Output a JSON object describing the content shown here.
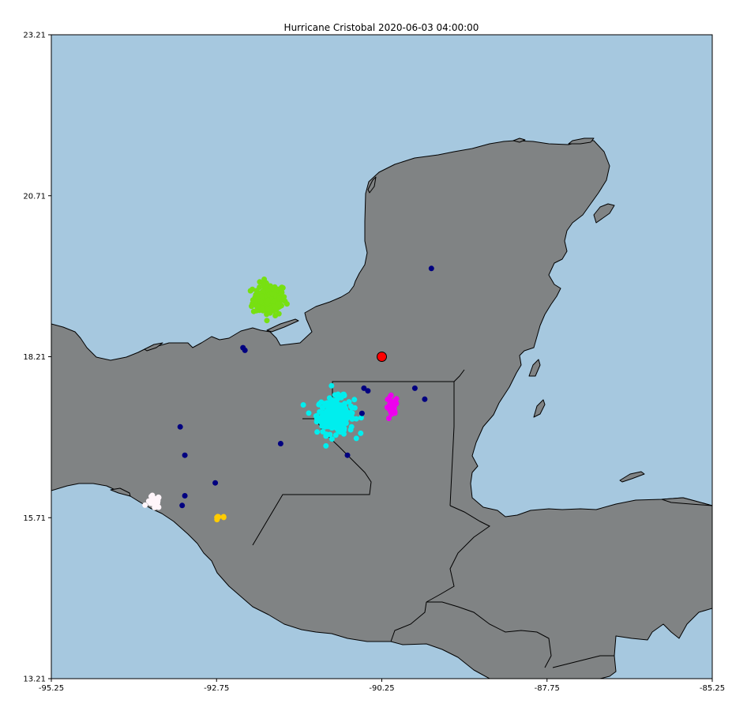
{
  "title": "Hurricane Cristobal 2020-06-03 04:00:00",
  "colors": {
    "ocean": "#a6c8df",
    "land": "#808384",
    "coast": "#000000",
    "storm_center": "#ff0000",
    "cluster_green": "#77e011",
    "cluster_cyan": "#00eeee",
    "cluster_magenta": "#ee00ee",
    "cluster_white": "#fff5fa",
    "cluster_yellow": "#ffcc00",
    "noise_navy": "#000080"
  },
  "chart_data": {
    "type": "scatter",
    "title": "Hurricane Cristobal 2020-06-03 04:00:00",
    "xlabel": "",
    "ylabel": "",
    "xlim": [
      -95.25,
      -85.25
    ],
    "ylim": [
      13.21,
      23.21
    ],
    "x_ticks": [
      "-95.25",
      "-92.75",
      "-90.25",
      "-87.75",
      "-85.25"
    ],
    "y_ticks": [
      "23.21",
      "20.71",
      "18.21",
      "15.71",
      "13.21"
    ],
    "grid": false,
    "storm_center": {
      "lon": -90.25,
      "lat": 18.21
    },
    "clusters": [
      {
        "color_key": "cluster_green",
        "center": [
          -91.95,
          19.1
        ],
        "spread": [
          0.25,
          0.25
        ],
        "count": 160
      },
      {
        "color_key": "cluster_cyan",
        "center": [
          -90.95,
          17.3
        ],
        "spread": [
          0.28,
          0.28
        ],
        "count": 220
      },
      {
        "color_key": "cluster_magenta",
        "center": [
          -90.1,
          17.4
        ],
        "spread": [
          0.09,
          0.2
        ],
        "count": 28
      },
      {
        "color_key": "cluster_white",
        "center": [
          -93.7,
          15.95
        ],
        "spread": [
          0.1,
          0.1
        ],
        "count": 22
      },
      {
        "color_key": "cluster_yellow",
        "center": [
          -92.7,
          15.7
        ],
        "spread": [
          0.12,
          0.04
        ],
        "count": 6
      }
    ],
    "noise_points": [
      [
        -89.5,
        19.58
      ],
      [
        -92.35,
        18.35
      ],
      [
        -92.32,
        18.31
      ],
      [
        -93.3,
        17.12
      ],
      [
        -93.23,
        16.68
      ],
      [
        -91.78,
        16.86
      ],
      [
        -90.77,
        16.68
      ],
      [
        -90.52,
        17.72
      ],
      [
        -90.46,
        17.68
      ],
      [
        -90.55,
        17.33
      ],
      [
        -89.75,
        17.72
      ],
      [
        -89.6,
        17.55
      ],
      [
        -92.77,
        16.25
      ],
      [
        -93.23,
        16.05
      ],
      [
        -93.27,
        15.9
      ]
    ]
  }
}
